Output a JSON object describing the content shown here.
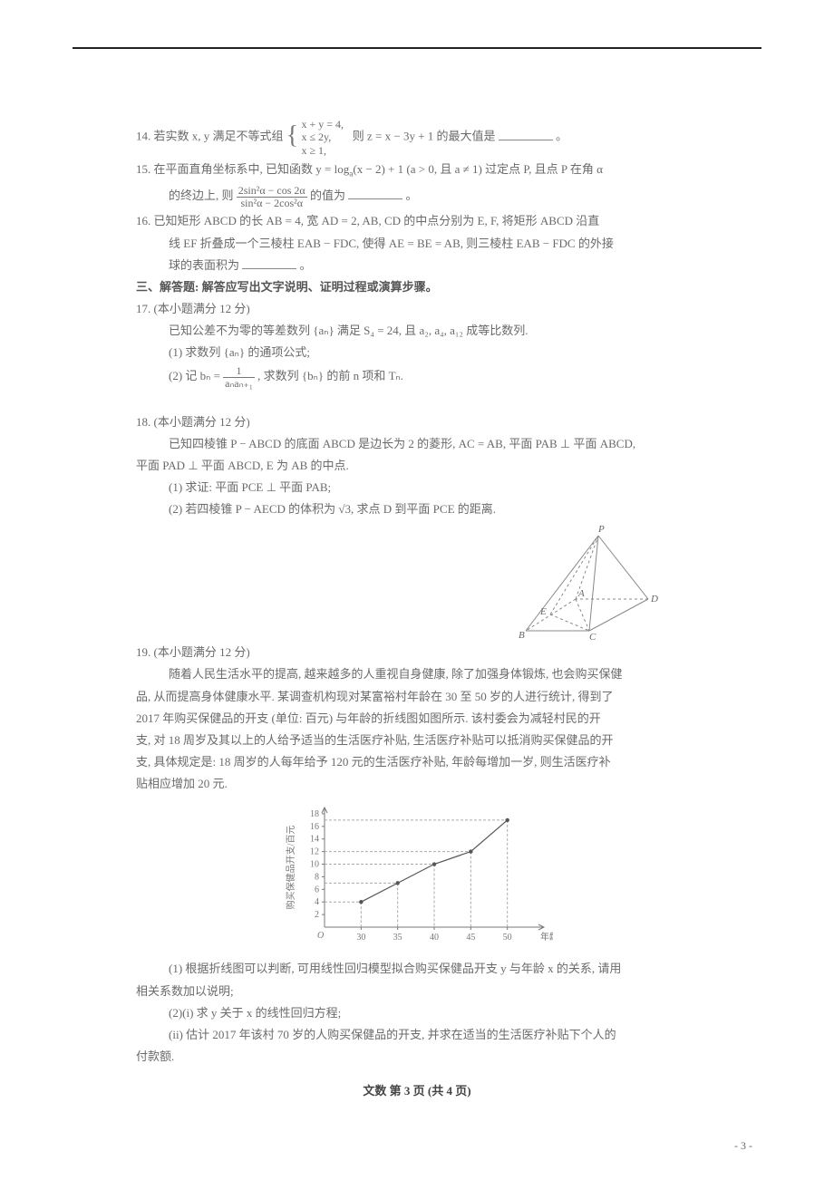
{
  "q14": {
    "label": "14.",
    "pre": "若实数 x, y 满足不等式组",
    "sys1": "x + y = 4,",
    "sys2": "x ≤ 2y,",
    "sys3": "x ≥ 1,",
    "post": "则 z = x − 3y + 1 的最大值是",
    "tail": "。"
  },
  "q15": {
    "label": "15.",
    "line1a": "在平面直角坐标系中, 已知函数 y = log",
    "line1sub": "a",
    "line1b": "(x − 2) + 1 (a > 0, 且 a ≠ 1) 过定点 P, 且点 P 在角 α",
    "line2a": "的终边上, 则",
    "frac_num": "2sin²α − cos 2α",
    "frac_den": "sin²α − 2cos²α",
    "line2b": "的值为",
    "tail": "。"
  },
  "q16": {
    "label": "16.",
    "l1": "已知矩形 ABCD 的长 AB = 4, 宽 AD = 2, AB, CD 的中点分别为 E, F, 将矩形 ABCD 沿直",
    "l2": "线 EF 折叠成一个三棱柱 EAB − FDC, 使得 AE = BE = AB, 则三棱柱 EAB − FDC 的外接",
    "l3a": "球的表面积为",
    "tail": "。"
  },
  "section3": "三、解答题: 解答应写出文字说明、证明过程或演算步骤。",
  "q17": {
    "label": "17.",
    "head": "(本小题满分 12 分)",
    "l1": "已知公差不为零的等差数列 {aₙ} 满足 S₄ = 24, 且 a₂, a₄, a₁₂ 成等比数列.",
    "p1": "(1) 求数列 {aₙ} 的通项公式;",
    "p2a": "(2) 记 bₙ =",
    "frac_num": "1",
    "frac_den": "aₙaₙ₊₁",
    "p2b": ", 求数列 {bₙ} 的前 n 项和 Tₙ."
  },
  "q18": {
    "label": "18.",
    "head": "(本小题满分 12 分)",
    "l1": "已知四棱锥 P − ABCD 的底面 ABCD 是边长为 2 的菱形, AC = AB, 平面 PAB ⊥ 平面 ABCD,",
    "l2": "平面 PAD ⊥ 平面 ABCD, E 为 AB 的中点.",
    "p1": "(1) 求证: 平面 PCE ⊥ 平面 PAB;",
    "p2": "(2) 若四棱锥 P − AECD 的体积为 √3, 求点 D 到平面 PCE 的距离."
  },
  "geom": {
    "labels": {
      "P": "P",
      "A": "A",
      "B": "B",
      "C": "C",
      "D": "D",
      "E": "E"
    },
    "stroke": "#888888",
    "dash": "3,3"
  },
  "q19": {
    "label": "19.",
    "head": "(本小题满分 12 分)",
    "t1": "随着人民生活水平的提高, 越来越多的人重视自身健康, 除了加强身体锻炼, 也会购买保健",
    "t2": "品, 从而提高身体健康水平. 某调查机构现对某富裕村年龄在 30 至 50 岁的人进行统计, 得到了",
    "t3": "2017 年购买保健品的开支 (单位: 百元) 与年龄的折线图如图所示. 该村委会为减轻村民的开",
    "t4": "支, 对 18 周岁及其以上的人给予适当的生活医疗补贴, 生活医疗补贴可以抵消购买保健品的开",
    "t5": "支, 具体规定是: 18 周岁的人每年给予 120 元的生活医疗补贴, 年龄每增加一岁, 则生活医疗补",
    "t6": "贴相应增加 20 元.",
    "p1": "(1) 根据折线图可以判断, 可用线性回归模型拟合购买保健品开支 y 与年龄 x 的关系, 请用",
    "p1b": "相关系数加以说明;",
    "p2i": "(2)(i) 求 y 关于 x 的线性回归方程;",
    "p2ii": "(ii) 估计 2017 年该村 70 岁的人购买保健品的开支, 并求在适当的生活医疗补贴下个人的",
    "p2iii": "付款额."
  },
  "chart": {
    "type": "line",
    "x_values": [
      30,
      35,
      40,
      45,
      50
    ],
    "y_values": [
      4,
      7,
      10,
      12,
      17
    ],
    "y_ticks": [
      2,
      4,
      6,
      8,
      10,
      12,
      14,
      16,
      18
    ],
    "x_label": "年龄/岁",
    "y_label": "购买保健品开支/百元",
    "axis_color": "#777777",
    "dash_color": "#aaaaaa",
    "point_color": "#555555",
    "bg": "#ffffff",
    "xlim": [
      25,
      55
    ],
    "ylim": [
      0,
      19
    ],
    "label_fontsize": 10
  },
  "footer": "文数 第 3 页 (共 4 页)",
  "pagenum": "- 3 -"
}
